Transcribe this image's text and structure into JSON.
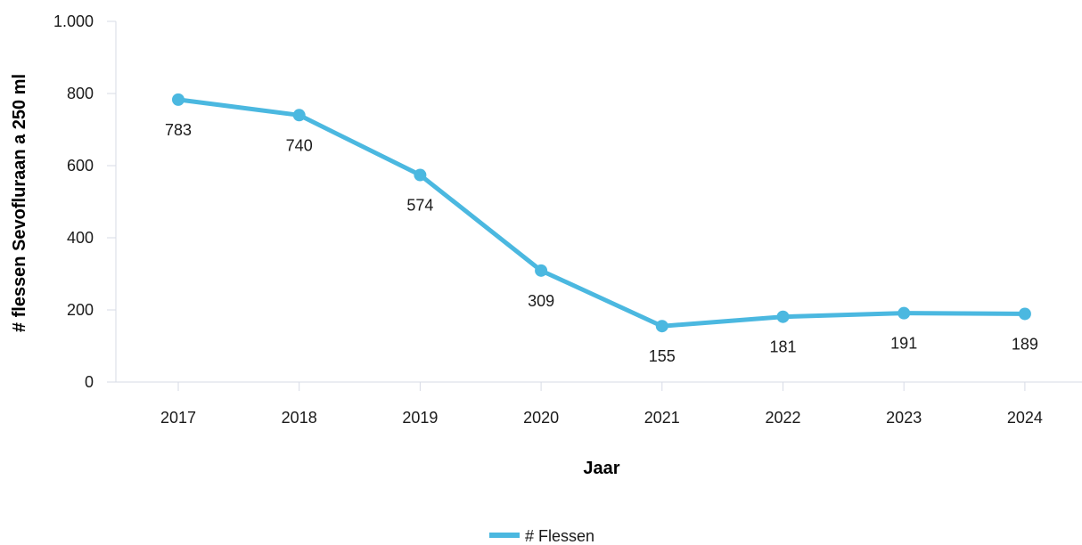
{
  "chart_data": {
    "type": "line",
    "categories": [
      "2017",
      "2018",
      "2019",
      "2020",
      "2021",
      "2022",
      "2023",
      "2024"
    ],
    "series": [
      {
        "name": "# Flessen",
        "values": [
          783,
          740,
          574,
          309,
          155,
          181,
          191,
          189
        ]
      }
    ],
    "data_labels": [
      "783",
      "740",
      "574",
      "309",
      "155",
      "181",
      "191",
      "189"
    ],
    "xlabel": "Jaar",
    "ylabel": "# flessen Sevofluraan a 250 ml",
    "ylim": [
      0,
      1000
    ],
    "yticks": [
      0,
      200,
      400,
      600,
      800,
      1000
    ],
    "ytick_labels": [
      "0",
      "200",
      "400",
      "600",
      "800",
      "1.000"
    ],
    "grid": false,
    "legend": "bottom-center",
    "colors": {
      "series": "#4bb8e0",
      "axis": "#d7dbe6"
    }
  }
}
